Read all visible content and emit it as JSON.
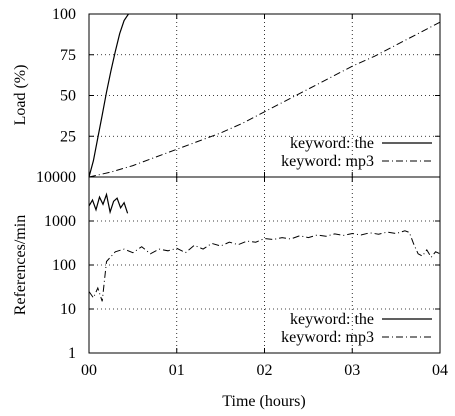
{
  "chart_data": [
    {
      "type": "line",
      "ylabel": "Load (%)",
      "ylim": [
        0,
        100
      ],
      "yticks": [
        0,
        25,
        50,
        75,
        100
      ],
      "ytick_labels": [
        "0",
        "25",
        "50",
        "75",
        "100"
      ],
      "xlim": [
        0,
        4
      ],
      "grid": true,
      "legend_position": "bottom-right",
      "series": [
        {
          "name": "keyword: the",
          "style": "solid",
          "x": [
            0,
            0.05,
            0.1,
            0.15,
            0.2,
            0.25,
            0.3,
            0.35,
            0.4,
            0.45
          ],
          "y": [
            0,
            10,
            24,
            38,
            52,
            65,
            77,
            88,
            96,
            100
          ]
        },
        {
          "name": "keyword: mp3",
          "style": "dashdot",
          "x": [
            0,
            0.25,
            0.5,
            0.75,
            1.0,
            1.25,
            1.5,
            1.75,
            2.0,
            2.25,
            2.5,
            2.75,
            3.0,
            3.25,
            3.5,
            3.75,
            4.0
          ],
          "y": [
            0,
            3,
            7,
            12,
            17,
            22,
            27,
            33,
            40,
            47,
            54,
            61,
            68,
            74,
            81,
            88,
            95
          ]
        }
      ]
    },
    {
      "type": "line",
      "xlabel": "Time (hours)",
      "ylabel": "References/min",
      "yscale": "log",
      "ylim": [
        1,
        10000
      ],
      "yticks": [
        1,
        10,
        100,
        1000,
        10000
      ],
      "ytick_labels": [
        "1",
        "10",
        "100",
        "1000",
        "10000"
      ],
      "xlim": [
        0,
        4
      ],
      "xticks": [
        0,
        1,
        2,
        3,
        4
      ],
      "xtick_labels": [
        "00",
        "01",
        "02",
        "03",
        "04"
      ],
      "grid": true,
      "legend_position": "bottom-right",
      "series": [
        {
          "name": "keyword: the",
          "style": "solid",
          "x": [
            0,
            0.04,
            0.08,
            0.12,
            0.16,
            0.2,
            0.24,
            0.28,
            0.32,
            0.36,
            0.4,
            0.44
          ],
          "y": [
            2200,
            3000,
            1800,
            3500,
            2400,
            4000,
            1600,
            2800,
            3300,
            2000,
            2600,
            1500
          ]
        },
        {
          "name": "keyword: mp3",
          "style": "dashdot",
          "x": [
            0,
            0.05,
            0.1,
            0.15,
            0.2,
            0.3,
            0.4,
            0.5,
            0.6,
            0.7,
            0.8,
            0.9,
            1.0,
            1.1,
            1.2,
            1.3,
            1.4,
            1.5,
            1.6,
            1.7,
            1.8,
            1.9,
            2.0,
            2.1,
            2.2,
            2.3,
            2.4,
            2.5,
            2.6,
            2.7,
            2.8,
            2.9,
            3.0,
            3.1,
            3.2,
            3.3,
            3.4,
            3.5,
            3.6,
            3.65,
            3.7,
            3.75,
            3.8,
            3.85,
            3.9,
            3.95,
            4.0
          ],
          "y": [
            25,
            18,
            30,
            15,
            120,
            200,
            230,
            190,
            260,
            180,
            230,
            210,
            240,
            190,
            280,
            230,
            310,
            270,
            330,
            290,
            350,
            330,
            400,
            380,
            420,
            390,
            460,
            420,
            480,
            450,
            510,
            470,
            520,
            480,
            540,
            500,
            560,
            520,
            600,
            550,
            300,
            180,
            160,
            220,
            150,
            200,
            180
          ]
        }
      ]
    }
  ]
}
